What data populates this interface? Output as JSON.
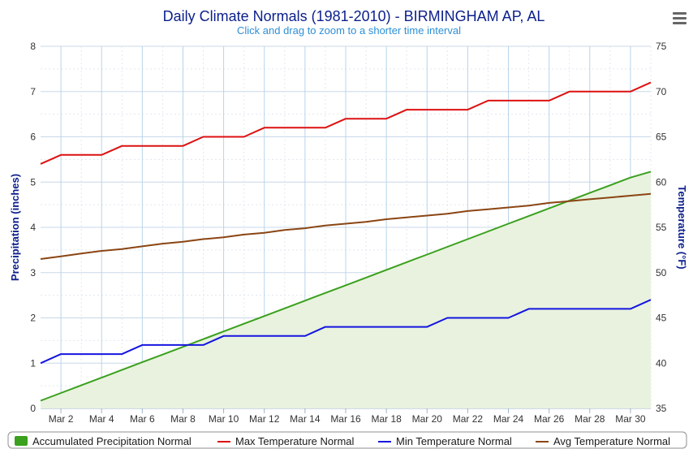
{
  "chart": {
    "title": "Daily Climate Normals (1981-2010) - BIRMINGHAM AP, AL",
    "subtitle": "Click and drag to zoom to a shorter time interval",
    "menu_icon": "hamburger-menu-icon"
  },
  "chart_data": {
    "type": "line",
    "x": [
      1,
      2,
      3,
      4,
      5,
      6,
      7,
      8,
      9,
      10,
      11,
      12,
      13,
      14,
      15,
      16,
      17,
      18,
      19,
      20,
      21,
      22,
      23,
      24,
      25,
      26,
      27,
      28,
      29,
      30,
      31
    ],
    "x_tick_labels": [
      "Mar 2",
      "Mar 4",
      "Mar 6",
      "Mar 8",
      "Mar 10",
      "Mar 12",
      "Mar 14",
      "Mar 16",
      "Mar 18",
      "Mar 20",
      "Mar 22",
      "Mar 24",
      "Mar 26",
      "Mar 28",
      "Mar 30"
    ],
    "x_tick_values": [
      2,
      4,
      6,
      8,
      10,
      12,
      14,
      16,
      18,
      20,
      22,
      24,
      26,
      28,
      30
    ],
    "xlim": [
      1,
      31
    ],
    "y_left": {
      "label": "Precipitation (inches)",
      "range": [
        0,
        8
      ],
      "ticks": [
        "0",
        "1",
        "2",
        "3",
        "4",
        "5",
        "6",
        "7",
        "8"
      ]
    },
    "y_right": {
      "label": "Temperature (°F)",
      "range": [
        35,
        75
      ],
      "ticks": [
        "35",
        "40",
        "45",
        "50",
        "55",
        "60",
        "65",
        "70",
        "75"
      ]
    },
    "grid": true,
    "legend_position": "bottom",
    "series": [
      {
        "name": "Accumulated Precipitation Normal",
        "axis": "left",
        "style": "area",
        "color": "#3aa01d",
        "fill": "#e8f2de",
        "values": [
          0.17,
          0.34,
          0.51,
          0.68,
          0.85,
          1.02,
          1.19,
          1.36,
          1.53,
          1.7,
          1.87,
          2.04,
          2.21,
          2.38,
          2.55,
          2.72,
          2.89,
          3.06,
          3.23,
          3.4,
          3.57,
          3.74,
          3.91,
          4.08,
          4.25,
          4.42,
          4.59,
          4.76,
          4.93,
          5.1,
          5.23
        ]
      },
      {
        "name": "Max Temperature Normal",
        "axis": "right",
        "style": "line",
        "color": "#dd1111",
        "values": [
          62,
          63,
          63,
          63,
          64,
          64,
          64,
          64,
          65,
          65,
          65,
          66,
          66,
          66,
          66,
          67,
          67,
          67,
          68,
          68,
          68,
          68,
          69,
          69,
          69,
          69,
          70,
          70,
          70,
          70,
          71
        ]
      },
      {
        "name": "Min Temperature Normal",
        "axis": "right",
        "style": "line",
        "color": "#1515e0",
        "values": [
          40,
          41,
          41,
          41,
          41,
          42,
          42,
          42,
          42,
          43,
          43,
          43,
          43,
          43,
          44,
          44,
          44,
          44,
          44,
          44,
          45,
          45,
          45,
          45,
          46,
          46,
          46,
          46,
          46,
          46,
          47
        ]
      },
      {
        "name": "Avg Temperature Normal",
        "axis": "right",
        "style": "line",
        "color": "#8b4513",
        "values": [
          51.5,
          51.8,
          52.1,
          52.4,
          52.6,
          52.9,
          53.2,
          53.4,
          53.7,
          53.9,
          54.2,
          54.4,
          54.7,
          54.9,
          55.2,
          55.4,
          55.6,
          55.9,
          56.1,
          56.3,
          56.5,
          56.8,
          57.0,
          57.2,
          57.4,
          57.7,
          57.9,
          58.1,
          58.3,
          58.5,
          58.7
        ]
      }
    ]
  }
}
